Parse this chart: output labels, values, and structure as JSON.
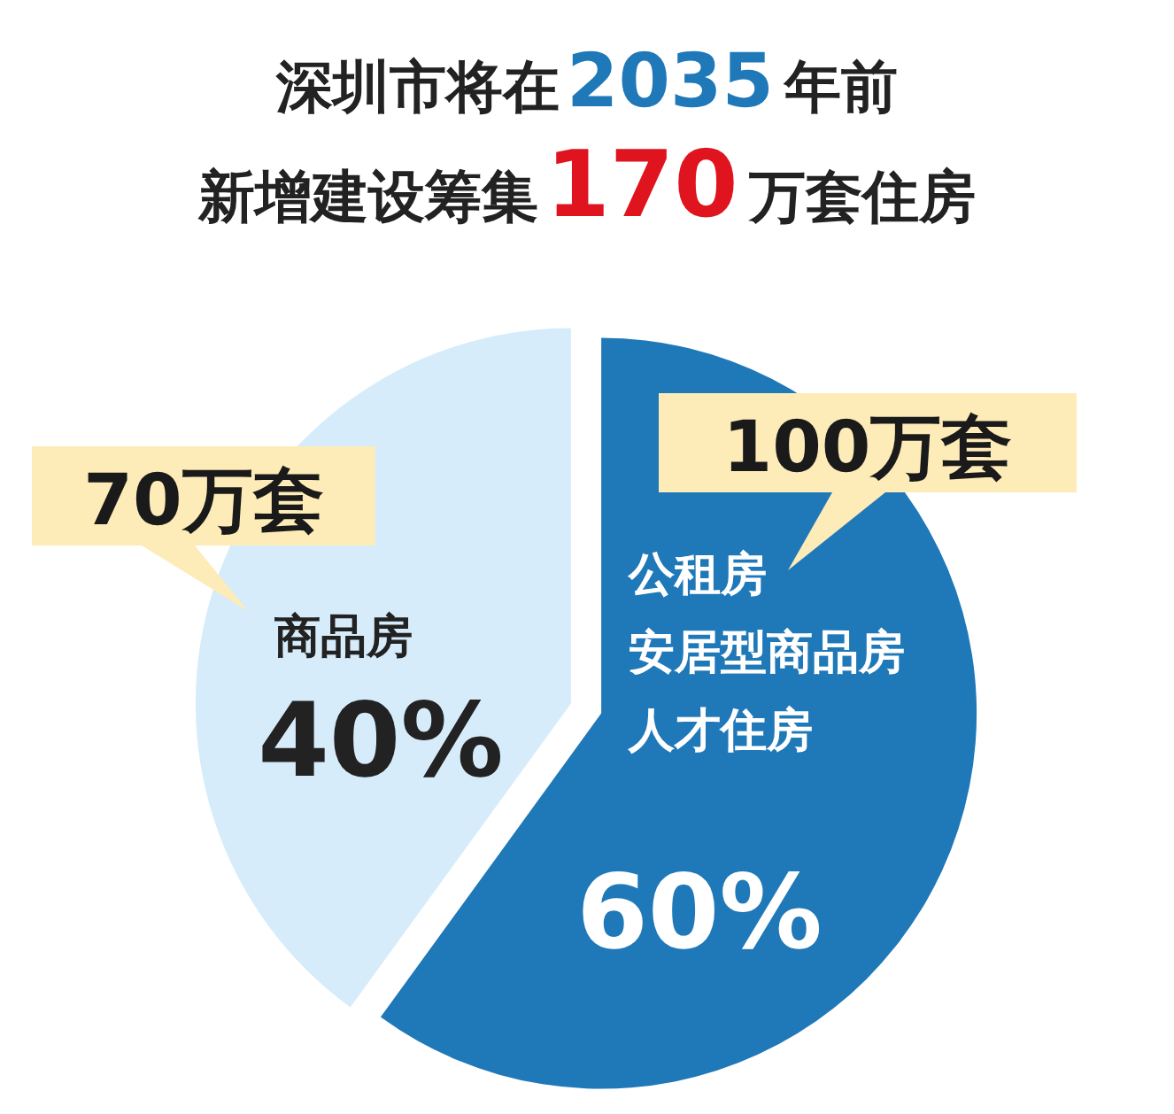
{
  "chart_data": {
    "type": "pie",
    "title": "深圳市将在2035年前",
    "subtitle": "新增建设筹集170万套住房",
    "categories": [
      null,
      "商品房"
    ],
    "values": [
      60,
      40
    ],
    "value_labels": [
      "60%",
      "40%"
    ],
    "colors": [
      "#1f78b8",
      "#d6ecfa"
    ],
    "annotations": [
      "100万套",
      "70万套",
      "公租房",
      "安居型商品房",
      "人才住房"
    ]
  }
}
